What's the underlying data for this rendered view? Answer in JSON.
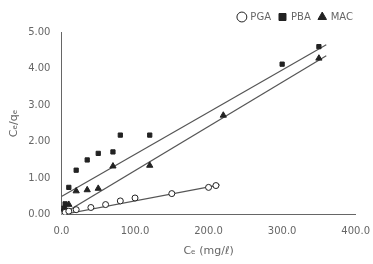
{
  "chart_data": {
    "type": "scatter",
    "xlabel": "Cₑ (mg/ℓ)",
    "ylabel": "Cₑ/qₑ",
    "xlim": [
      0.0,
      400.0
    ],
    "ylim": [
      0.0,
      5.0
    ],
    "xticks": [
      {
        "value": 0,
        "label": "0.0"
      },
      {
        "value": 100,
        "label": "100.0"
      },
      {
        "value": 200,
        "label": "200.0"
      },
      {
        "value": 300,
        "label": "300.0"
      },
      {
        "value": 400,
        "label": "400.0"
      }
    ],
    "yticks": [
      {
        "value": 0,
        "label": "0.00"
      },
      {
        "value": 1,
        "label": "1.00"
      },
      {
        "value": 2,
        "label": "2.00"
      },
      {
        "value": 3,
        "label": "3.00"
      },
      {
        "value": 4,
        "label": "4.00"
      },
      {
        "value": 5,
        "label": "5.00"
      }
    ],
    "grid": false,
    "legend": "upper right",
    "series": [
      {
        "type": "line",
        "color": "#555555",
        "x": [
          0.0,
          215.0
        ],
        "values": [
          0.0,
          0.82
        ]
      },
      {
        "type": "line",
        "color": "#555555",
        "x": [
          0.0,
          360.0
        ],
        "values": [
          0.5,
          4.65
        ]
      },
      {
        "type": "line",
        "color": "#555555",
        "x": [
          0.0,
          360.0
        ],
        "values": [
          0.0,
          4.35
        ]
      },
      {
        "name": "PGA",
        "type": "scatter",
        "marker": "circle-open",
        "color": "#222222",
        "x": [
          0.5,
          1.0,
          2.0,
          3.5,
          5.0,
          10.0,
          20.0,
          40.0,
          60.0,
          80.0,
          100.0,
          150.0,
          200.0,
          210.0
        ],
        "values": [
          0.01,
          0.02,
          0.03,
          0.05,
          0.07,
          0.1,
          0.14,
          0.2,
          0.28,
          0.38,
          0.46,
          0.58,
          0.75,
          0.8
        ]
      },
      {
        "name": "PBA",
        "type": "scatter",
        "marker": "square",
        "color": "#222222",
        "x": [
          0.5,
          2.0,
          5.0,
          10.0,
          20.0,
          35.0,
          50.0,
          70.0,
          80.0,
          120.0,
          300.0,
          350.0
        ],
        "values": [
          0.1,
          0.18,
          0.3,
          0.75,
          1.22,
          1.5,
          1.68,
          1.72,
          2.18,
          2.18,
          4.12,
          4.6
        ]
      },
      {
        "name": "MAC",
        "type": "scatter",
        "marker": "triangle",
        "color": "#222222",
        "x": [
          0.5,
          2.0,
          5.0,
          10.0,
          20.0,
          35.0,
          50.0,
          70.0,
          120.0,
          220.0,
          350.0
        ],
        "values": [
          0.05,
          0.1,
          0.18,
          0.28,
          0.65,
          0.68,
          0.72,
          1.33,
          1.35,
          2.72,
          4.28
        ]
      }
    ]
  }
}
